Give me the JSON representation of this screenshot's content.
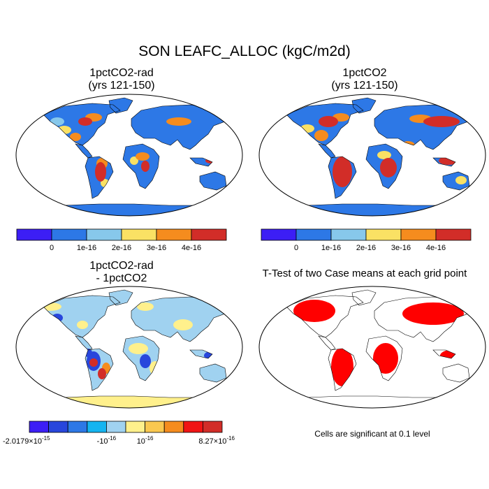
{
  "title": "SON LEAFC_ALLOC (kgC/m2d)",
  "panels": [
    {
      "line1": "1pctCO2-rad",
      "line2": "(yrs 121-150)"
    },
    {
      "line1": "1pctCO2",
      "line2": "(yrs 121-150)"
    },
    {
      "line1": "1pctCO2-rad",
      "line2": "- 1pctCO2"
    },
    {
      "line1": "T-Test of two Case means at each grid point",
      "line2": ""
    }
  ],
  "colorbar_top": {
    "colors": [
      "#3c1ef5",
      "#2d78e6",
      "#87c8eb",
      "#fae164",
      "#f58c1e",
      "#d22d28"
    ],
    "labels": [
      "0",
      "1e-16",
      "2e-16",
      "3e-16",
      "4e-16"
    ]
  },
  "colorbar_diff": {
    "colors": [
      "#3c1ef5",
      "#2846dc",
      "#2d78e6",
      "#14b4f0",
      "#a0d2f0",
      "#fff08c",
      "#fac850",
      "#f58c1e",
      "#f01414",
      "#d22d28"
    ],
    "labels": [
      {
        "base": "-2.0179×10",
        "exp": "-15"
      },
      {
        "base": "-10",
        "exp": "-16"
      },
      {
        "base": "10",
        "exp": "-16"
      },
      {
        "base": "8.27×10",
        "exp": "-16"
      }
    ]
  },
  "significance_note": "Cells are significant at 0.1 level",
  "map_colors": {
    "panel1": {
      "base": "#2d78e6",
      "hot": "#d22d28",
      "warm": "#f58c1e",
      "mid": "#fae164",
      "low": "#87c8eb",
      "ice": "#2d78e6"
    },
    "panel2": {
      "base": "#2d78e6",
      "hot": "#d22d28",
      "warm": "#f58c1e",
      "mid": "#fae164",
      "low": "#87c8eb",
      "ice": "#2d78e6"
    },
    "panel3": {
      "base": "#a0d2f0",
      "hot": "#d22d28",
      "warm": "#f58c1e",
      "mid": "#fff08c",
      "low": "#2846dc",
      "ice": "#fff08c"
    },
    "panel4": {
      "base": "#ffffff",
      "hot": "#ff0000",
      "warm": "#ff0000",
      "mid": "#ff0000",
      "low": "#ff0000",
      "ice": "#ffffff"
    }
  }
}
